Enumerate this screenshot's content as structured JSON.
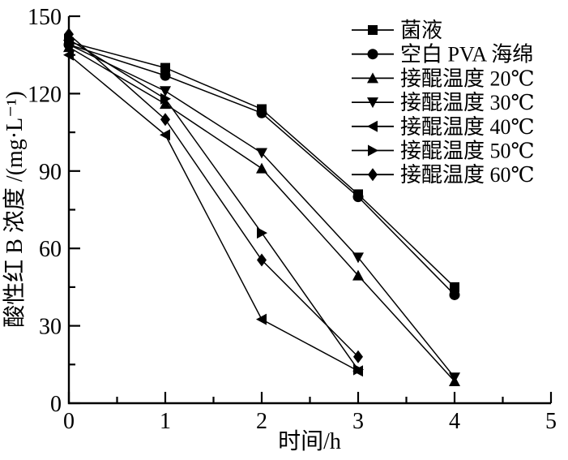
{
  "figure": {
    "background": "#ffffff",
    "ink": "#000000"
  },
  "chart_data": {
    "type": "line",
    "title": "",
    "xlabel": "时间/h",
    "ylabel": "酸性红 B 浓度 /(mg·L⁻¹)",
    "xlim": [
      0,
      5
    ],
    "ylim": [
      0,
      150
    ],
    "xticks": [
      0,
      1,
      2,
      3,
      4,
      5
    ],
    "yticks": [
      0,
      30,
      60,
      90,
      120,
      150
    ],
    "x_minor_step": 0.5,
    "y_minor_step": 15,
    "grid": false,
    "legend_position": "top-right",
    "line_color": "#000000",
    "series": [
      {
        "name": "菌液",
        "marker": "square",
        "x": [
          0,
          1,
          2,
          3,
          4
        ],
        "y": [
          140,
          130,
          114,
          81,
          45
        ]
      },
      {
        "name": "空白 PVA 海绵",
        "marker": "circle",
        "x": [
          0,
          1,
          2,
          3,
          4
        ],
        "y": [
          139,
          127,
          112.5,
          80,
          42
        ]
      },
      {
        "name": "接醌温度 20℃",
        "marker": "triangle-up",
        "x": [
          0,
          1,
          2,
          3,
          4
        ],
        "y": [
          138,
          116,
          91,
          49.5,
          8.5
        ]
      },
      {
        "name": "接醌温度 30℃",
        "marker": "triangle-down",
        "x": [
          0,
          1,
          2,
          3,
          4
        ],
        "y": [
          139,
          121,
          97,
          56.5,
          10
        ]
      },
      {
        "name": "接醌温度 40℃",
        "marker": "triangle-left",
        "x": [
          0,
          1,
          2,
          3
        ],
        "y": [
          135,
          104,
          32.5,
          12.5
        ]
      },
      {
        "name": "接醌温度 50℃",
        "marker": "triangle-right",
        "x": [
          0,
          1,
          2,
          3
        ],
        "y": [
          141,
          118,
          66,
          13
        ]
      },
      {
        "name": "接醌温度 60℃",
        "marker": "diamond",
        "x": [
          0,
          1,
          2,
          3
        ],
        "y": [
          143,
          110,
          55.5,
          18
        ]
      }
    ]
  }
}
